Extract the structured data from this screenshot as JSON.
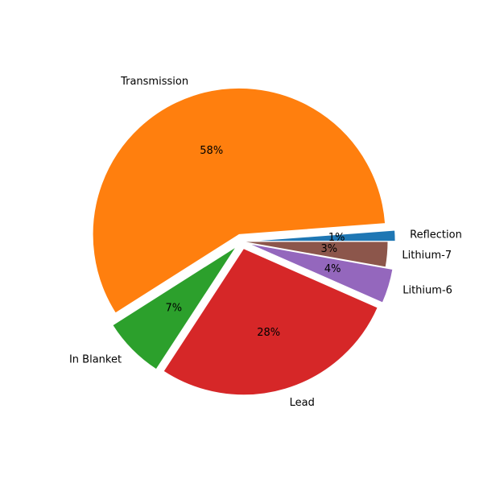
{
  "chart_data": {
    "type": "pie",
    "title": "",
    "start_angle_deg": 0,
    "direction": "counterclockwise",
    "autopct_format": "integer-percent",
    "slices": [
      {
        "label": "Reflection",
        "value": 1.2,
        "pct_label": "1%",
        "color": "#1f77b4",
        "explode": 0.05
      },
      {
        "label": "Transmission",
        "value": 57.8,
        "pct_label": "58%",
        "color": "#ff7f0e",
        "explode": 0.05
      },
      {
        "label": "In Blanket",
        "value": 6.8,
        "pct_label": "7%",
        "color": "#2ca02c",
        "explode": 0.05
      },
      {
        "label": "Lead",
        "value": 27.6,
        "pct_label": "28%",
        "color": "#d62728",
        "explode": 0.05
      },
      {
        "label": "Lithium-6",
        "value": 3.8,
        "pct_label": "4%",
        "color": "#9467bd",
        "explode": 0.05
      },
      {
        "label": "Lithium-7",
        "value": 2.8,
        "pct_label": "3%",
        "color": "#8c564b",
        "explode": 0.0
      }
    ]
  }
}
